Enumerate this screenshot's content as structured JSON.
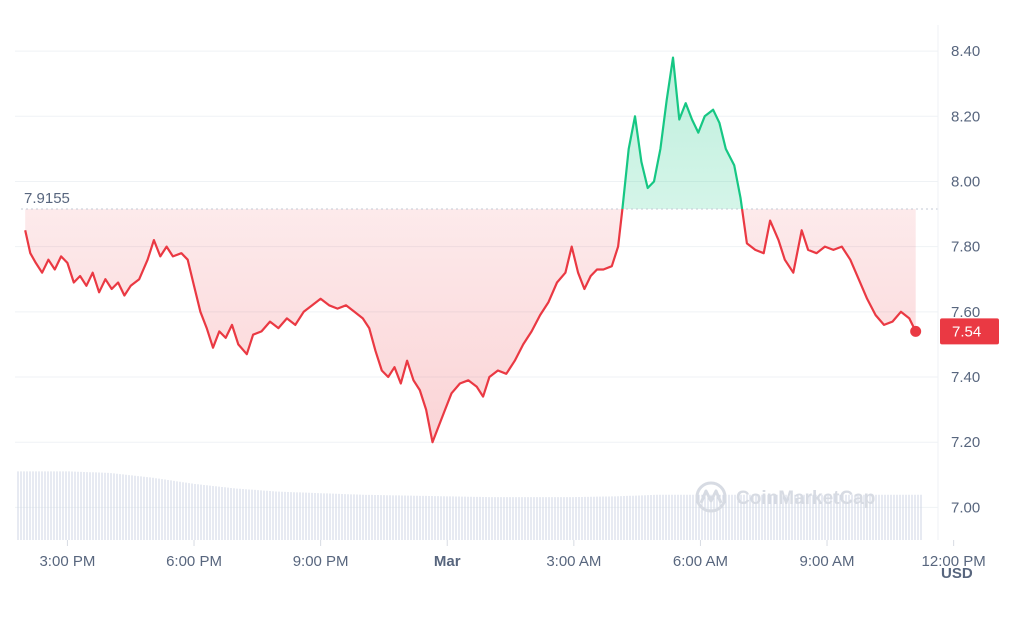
{
  "chart_data": {
    "type": "line",
    "currency_label": "USD",
    "reference_price": 7.9155,
    "reference_label": "7.9155",
    "current_price_label": "7.54",
    "ylim": [
      6.9,
      8.48
    ],
    "y_ticks": [
      {
        "value": 7.0,
        "label": "7.00"
      },
      {
        "value": 7.2,
        "label": "7.20"
      },
      {
        "value": 7.4,
        "label": "7.40"
      },
      {
        "value": 7.6,
        "label": "7.60"
      },
      {
        "value": 7.8,
        "label": "7.80"
      },
      {
        "value": 8.0,
        "label": "8.00"
      },
      {
        "value": 8.2,
        "label": "8.20"
      },
      {
        "value": 8.4,
        "label": "8.40"
      }
    ],
    "x_ticks": [
      {
        "h": 1,
        "label": "3:00 PM",
        "bold": false
      },
      {
        "h": 4,
        "label": "6:00 PM",
        "bold": false
      },
      {
        "h": 7,
        "label": "9:00 PM",
        "bold": false
      },
      {
        "h": 10,
        "label": "Mar",
        "bold": true
      },
      {
        "h": 13,
        "label": "3:00 AM",
        "bold": false
      },
      {
        "h": 16,
        "label": "6:00 AM",
        "bold": false
      },
      {
        "h": 19,
        "label": "9:00 AM",
        "bold": false
      },
      {
        "h": 22,
        "label": "12:00 PM",
        "bold": false
      }
    ],
    "colors": {
      "up": "#16c784",
      "down": "#ea3943",
      "grid": "#eff2f5",
      "volume": "#cfd6e4",
      "axis_text": "#58667e"
    },
    "price_series": [
      [
        0.0,
        7.85
      ],
      [
        0.12,
        7.78
      ],
      [
        0.25,
        7.75
      ],
      [
        0.4,
        7.72
      ],
      [
        0.55,
        7.76
      ],
      [
        0.7,
        7.73
      ],
      [
        0.85,
        7.77
      ],
      [
        1.0,
        7.75
      ],
      [
        1.15,
        7.69
      ],
      [
        1.3,
        7.71
      ],
      [
        1.45,
        7.68
      ],
      [
        1.6,
        7.72
      ],
      [
        1.75,
        7.66
      ],
      [
        1.9,
        7.7
      ],
      [
        2.05,
        7.67
      ],
      [
        2.2,
        7.69
      ],
      [
        2.35,
        7.65
      ],
      [
        2.5,
        7.68
      ],
      [
        2.7,
        7.7
      ],
      [
        2.9,
        7.76
      ],
      [
        3.05,
        7.82
      ],
      [
        3.2,
        7.77
      ],
      [
        3.35,
        7.8
      ],
      [
        3.5,
        7.77
      ],
      [
        3.7,
        7.78
      ],
      [
        3.85,
        7.76
      ],
      [
        4.0,
        7.68
      ],
      [
        4.15,
        7.6
      ],
      [
        4.3,
        7.55
      ],
      [
        4.45,
        7.49
      ],
      [
        4.6,
        7.54
      ],
      [
        4.75,
        7.52
      ],
      [
        4.9,
        7.56
      ],
      [
        5.05,
        7.5
      ],
      [
        5.25,
        7.47
      ],
      [
        5.4,
        7.53
      ],
      [
        5.6,
        7.54
      ],
      [
        5.8,
        7.57
      ],
      [
        6.0,
        7.55
      ],
      [
        6.2,
        7.58
      ],
      [
        6.4,
        7.56
      ],
      [
        6.6,
        7.6
      ],
      [
        6.8,
        7.62
      ],
      [
        7.0,
        7.64
      ],
      [
        7.2,
        7.62
      ],
      [
        7.4,
        7.61
      ],
      [
        7.6,
        7.62
      ],
      [
        7.8,
        7.6
      ],
      [
        8.0,
        7.58
      ],
      [
        8.15,
        7.55
      ],
      [
        8.3,
        7.48
      ],
      [
        8.45,
        7.42
      ],
      [
        8.6,
        7.4
      ],
      [
        8.75,
        7.43
      ],
      [
        8.9,
        7.38
      ],
      [
        9.05,
        7.45
      ],
      [
        9.2,
        7.39
      ],
      [
        9.35,
        7.36
      ],
      [
        9.5,
        7.3
      ],
      [
        9.65,
        7.2
      ],
      [
        9.8,
        7.25
      ],
      [
        9.95,
        7.3
      ],
      [
        10.1,
        7.35
      ],
      [
        10.3,
        7.38
      ],
      [
        10.5,
        7.39
      ],
      [
        10.7,
        7.37
      ],
      [
        10.85,
        7.34
      ],
      [
        11.0,
        7.4
      ],
      [
        11.2,
        7.42
      ],
      [
        11.4,
        7.41
      ],
      [
        11.6,
        7.45
      ],
      [
        11.8,
        7.5
      ],
      [
        12.0,
        7.54
      ],
      [
        12.2,
        7.59
      ],
      [
        12.4,
        7.63
      ],
      [
        12.6,
        7.69
      ],
      [
        12.8,
        7.72
      ],
      [
        12.95,
        7.8
      ],
      [
        13.1,
        7.72
      ],
      [
        13.25,
        7.67
      ],
      [
        13.4,
        7.71
      ],
      [
        13.55,
        7.73
      ],
      [
        13.7,
        7.73
      ],
      [
        13.9,
        7.74
      ],
      [
        14.05,
        7.8
      ],
      [
        14.15,
        7.9155
      ],
      [
        14.3,
        8.1
      ],
      [
        14.45,
        8.2
      ],
      [
        14.6,
        8.06
      ],
      [
        14.75,
        7.98
      ],
      [
        14.9,
        8.0
      ],
      [
        15.05,
        8.1
      ],
      [
        15.2,
        8.25
      ],
      [
        15.35,
        8.38
      ],
      [
        15.5,
        8.19
      ],
      [
        15.65,
        8.24
      ],
      [
        15.8,
        8.19
      ],
      [
        15.95,
        8.15
      ],
      [
        16.1,
        8.2
      ],
      [
        16.3,
        8.22
      ],
      [
        16.45,
        8.18
      ],
      [
        16.6,
        8.1
      ],
      [
        16.8,
        8.05
      ],
      [
        16.95,
        7.95
      ],
      [
        17.1,
        7.81
      ],
      [
        17.3,
        7.79
      ],
      [
        17.5,
        7.78
      ],
      [
        17.65,
        7.88
      ],
      [
        17.85,
        7.82
      ],
      [
        18.0,
        7.76
      ],
      [
        18.2,
        7.72
      ],
      [
        18.4,
        7.85
      ],
      [
        18.55,
        7.79
      ],
      [
        18.75,
        7.78
      ],
      [
        18.95,
        7.8
      ],
      [
        19.15,
        7.79
      ],
      [
        19.35,
        7.8
      ],
      [
        19.55,
        7.76
      ],
      [
        19.75,
        7.7
      ],
      [
        19.95,
        7.64
      ],
      [
        20.15,
        7.59
      ],
      [
        20.35,
        7.56
      ],
      [
        20.55,
        7.57
      ],
      [
        20.75,
        7.6
      ],
      [
        20.95,
        7.58
      ],
      [
        21.1,
        7.54
      ]
    ],
    "volume_series": [
      [
        0.0,
        0.88
      ],
      [
        1.0,
        0.88
      ],
      [
        2.0,
        0.86
      ],
      [
        3.0,
        0.8
      ],
      [
        4.0,
        0.72
      ],
      [
        5.0,
        0.66
      ],
      [
        6.0,
        0.62
      ],
      [
        7.0,
        0.6
      ],
      [
        8.0,
        0.58
      ],
      [
        9.0,
        0.57
      ],
      [
        10.0,
        0.56
      ],
      [
        11.0,
        0.55
      ],
      [
        12.0,
        0.55
      ],
      [
        13.0,
        0.55
      ],
      [
        14.0,
        0.56
      ],
      [
        15.0,
        0.58
      ],
      [
        16.0,
        0.58
      ],
      [
        17.0,
        0.58
      ],
      [
        18.0,
        0.58
      ],
      [
        19.0,
        0.58
      ],
      [
        20.0,
        0.58
      ],
      [
        21.1,
        0.58
      ]
    ],
    "watermark": "CoinMarketCap"
  }
}
